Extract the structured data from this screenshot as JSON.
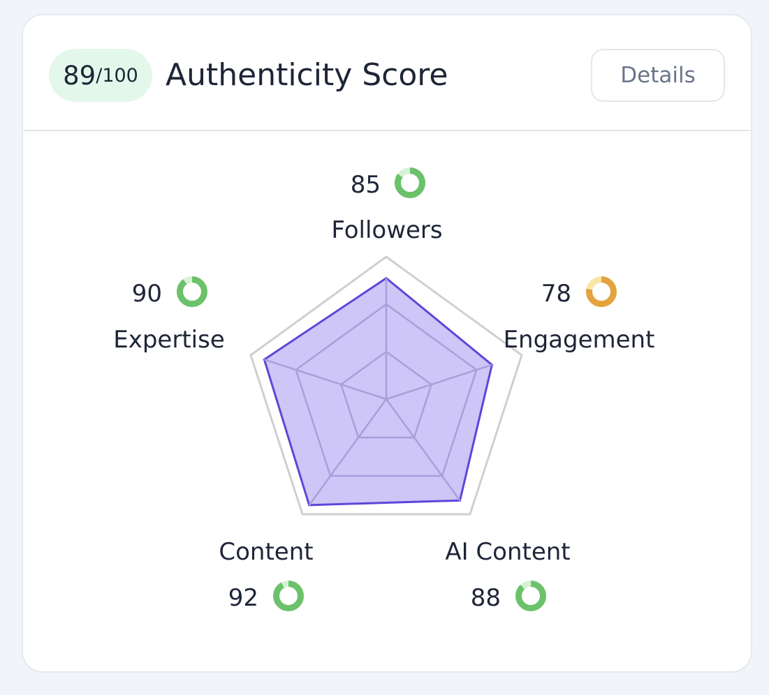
{
  "header": {
    "score": "89",
    "score_max": "/100",
    "title": "Authenticity Score",
    "details_label": "Details"
  },
  "colors": {
    "good": "#6cc26b",
    "good_track": "#d6f2d6",
    "warn": "#e3a43f",
    "warn_track": "#f7e6a6",
    "radar_fill": "#cdc6f6",
    "radar_stroke": "#5b47d8"
  },
  "chart_data": {
    "type": "radar",
    "max": 100,
    "axes": [
      {
        "label": "Followers",
        "value": 85,
        "status": "good"
      },
      {
        "label": "Engagement",
        "value": 78,
        "status": "warn"
      },
      {
        "label": "AI Content",
        "value": 88,
        "status": "good"
      },
      {
        "label": "Content",
        "value": 92,
        "status": "good"
      },
      {
        "label": "Expertise",
        "value": 90,
        "status": "good"
      }
    ]
  }
}
